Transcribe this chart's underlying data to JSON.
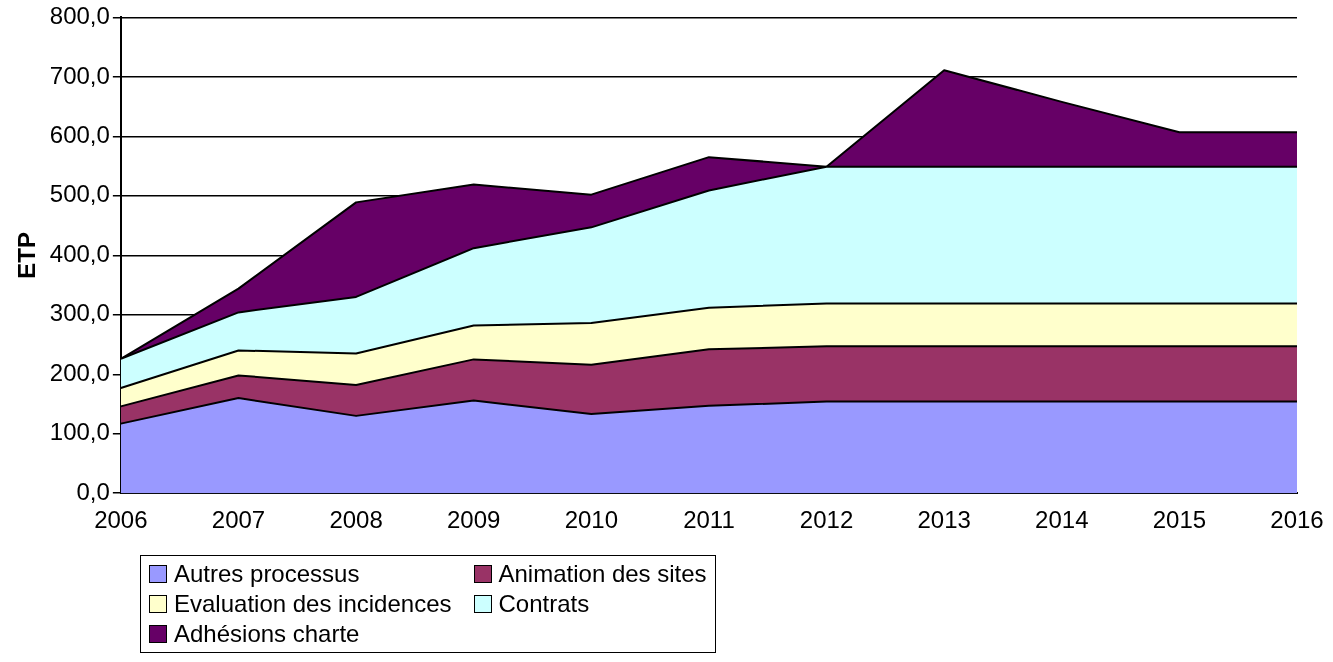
{
  "chart_data": {
    "type": "area",
    "stacked": true,
    "ylabel": "ETP",
    "categories": [
      "2006",
      "2007",
      "2008",
      "2009",
      "2010",
      "2011",
      "2012",
      "2013",
      "2014",
      "2015",
      "2016"
    ],
    "series": [
      {
        "name": "Autres processus",
        "color": "#9999ff",
        "values": [
          117,
          160,
          130,
          156,
          133,
          147,
          154,
          154,
          154,
          154,
          154
        ]
      },
      {
        "name": "Animation des sites",
        "color": "#993366",
        "values": [
          29,
          38,
          52,
          69,
          83,
          95,
          93,
          93,
          93,
          93,
          93
        ]
      },
      {
        "name": "Evaluation des incidences",
        "color": "#ffffcc",
        "values": [
          31,
          42,
          53,
          57,
          70,
          70,
          72,
          72,
          72,
          72,
          72
        ]
      },
      {
        "name": "Contrats",
        "color": "#ccffff",
        "values": [
          49,
          64,
          95,
          130,
          161,
          197,
          230,
          230,
          230,
          230,
          230
        ]
      },
      {
        "name": "Adhésions charte",
        "color": "#660066",
        "values": [
          0,
          40,
          159,
          107,
          55,
          56,
          0,
          162,
          109,
          58,
          58
        ]
      }
    ],
    "ylim": [
      0,
      800
    ],
    "yticks": [
      {
        "value": 0,
        "label": "0,0"
      },
      {
        "value": 100,
        "label": "100,0"
      },
      {
        "value": 200,
        "label": "200,0"
      },
      {
        "value": 300,
        "label": "300,0"
      },
      {
        "value": 400,
        "label": "400,0"
      },
      {
        "value": 500,
        "label": "500,0"
      },
      {
        "value": 600,
        "label": "600,0"
      },
      {
        "value": 700,
        "label": "700,0"
      },
      {
        "value": 800,
        "label": "800,0"
      }
    ],
    "grid": "y",
    "legend": "bottom left"
  }
}
